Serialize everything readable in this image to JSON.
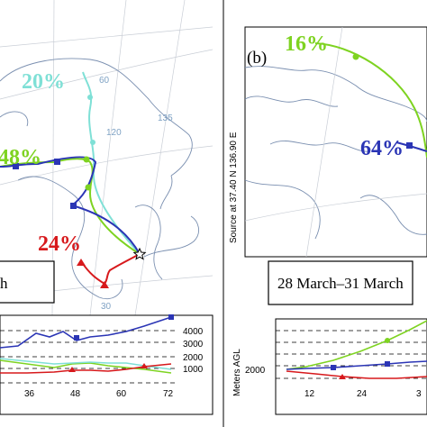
{
  "colors": {
    "red": "#d7191c",
    "green": "#7ed321",
    "blue": "#2b35b5",
    "cyan": "#7fe0d6",
    "coast": "#7a8fb0",
    "grid_label": "#7fa2c4"
  },
  "panel_a": {
    "percent_red": "24%",
    "percent_green": "48%",
    "percent_cyan": "20%",
    "date_fragment": "h",
    "grid_labels": [
      "60",
      "120",
      "135",
      "30"
    ],
    "height_ticks": [
      "4000",
      "3000",
      "2000",
      "1000"
    ],
    "hour_ticks": [
      "36",
      "48",
      "60",
      "72"
    ]
  },
  "panel_b": {
    "label": "(b)",
    "percent_green": "16%",
    "percent_blue": "64%",
    "source_label": "Source  at  37.40 N  136.90 E",
    "date_range": "28 March–31 March",
    "ylabel": "Meters AGL",
    "height_ticks": [
      "2000"
    ],
    "hour_ticks": [
      "12",
      "24",
      "3"
    ]
  },
  "markers": {
    "source_marker": "star-icon"
  }
}
